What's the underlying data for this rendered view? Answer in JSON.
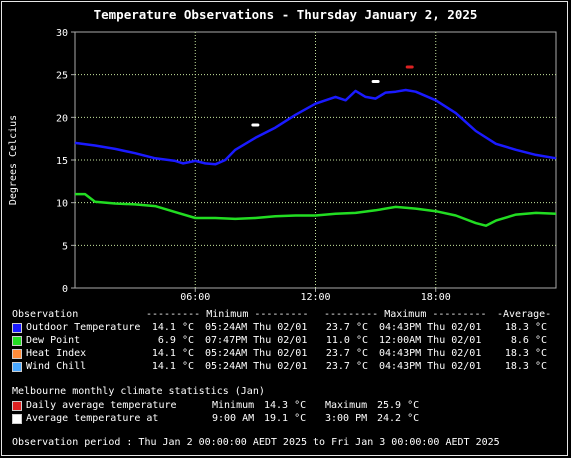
{
  "title": "Temperature Observations - Thursday January 2, 2025",
  "chart_data": {
    "type": "line",
    "ylabel": "Degrees Celcius",
    "ylim": [
      0,
      30
    ],
    "yticks": [
      "0",
      "5",
      "10",
      "15",
      "20",
      "25",
      "30"
    ],
    "xlim": [
      0,
      24
    ],
    "xticks": [
      {
        "x": 6,
        "label": "06:00"
      },
      {
        "x": 12,
        "label": "12:00"
      },
      {
        "x": 18,
        "label": "18:00"
      }
    ],
    "grid": true,
    "series": [
      {
        "name": "Outdoor Temperature",
        "color": "#1a1aff",
        "points": [
          [
            0,
            17.0
          ],
          [
            1,
            16.7
          ],
          [
            2,
            16.3
          ],
          [
            3,
            15.8
          ],
          [
            4,
            15.2
          ],
          [
            5,
            14.9
          ],
          [
            5.4,
            14.6
          ],
          [
            6,
            14.9
          ],
          [
            6.5,
            14.6
          ],
          [
            7,
            14.5
          ],
          [
            7.5,
            15.0
          ],
          [
            8,
            16.2
          ],
          [
            9,
            17.6
          ],
          [
            10,
            18.8
          ],
          [
            11,
            20.3
          ],
          [
            12,
            21.6
          ],
          [
            13,
            22.4
          ],
          [
            13.5,
            22.0
          ],
          [
            14,
            23.1
          ],
          [
            14.5,
            22.4
          ],
          [
            15,
            22.2
          ],
          [
            15.5,
            22.9
          ],
          [
            16,
            23.0
          ],
          [
            16.5,
            23.2
          ],
          [
            17,
            23.0
          ],
          [
            18,
            22.0
          ],
          [
            19,
            20.5
          ],
          [
            20,
            18.4
          ],
          [
            21,
            16.9
          ],
          [
            22,
            16.2
          ],
          [
            23,
            15.6
          ],
          [
            24,
            15.2
          ]
        ]
      },
      {
        "name": "Dew Point",
        "color": "#22dd22",
        "points": [
          [
            0,
            11.0
          ],
          [
            0.5,
            11.0
          ],
          [
            1,
            10.1
          ],
          [
            2,
            9.9
          ],
          [
            3,
            9.8
          ],
          [
            4,
            9.6
          ],
          [
            5,
            8.9
          ],
          [
            6,
            8.2
          ],
          [
            7,
            8.2
          ],
          [
            8,
            8.1
          ],
          [
            9,
            8.2
          ],
          [
            10,
            8.4
          ],
          [
            11,
            8.5
          ],
          [
            12,
            8.5
          ],
          [
            13,
            8.7
          ],
          [
            14,
            8.8
          ],
          [
            15,
            9.1
          ],
          [
            16,
            9.5
          ],
          [
            17,
            9.3
          ],
          [
            18,
            9.0
          ],
          [
            19,
            8.5
          ],
          [
            20,
            7.6
          ],
          [
            20.5,
            7.3
          ],
          [
            21,
            7.9
          ],
          [
            22,
            8.6
          ],
          [
            23,
            8.8
          ],
          [
            24,
            8.7
          ]
        ]
      }
    ],
    "markers": [
      {
        "name": "Daily average temperature",
        "x": 16.7,
        "y": 25.9,
        "color": "#dd2222"
      },
      {
        "name": "Average temperature at 9:00 AM",
        "x": 9,
        "y": 19.1,
        "color": "#ffffff"
      },
      {
        "name": "Average temperature at 3:00 PM",
        "x": 15,
        "y": 24.2,
        "color": "#ffffff"
      }
    ]
  },
  "table": {
    "header": {
      "observation": "Observation",
      "minimum": "--------- Minimum ---------",
      "maximum": "--------- Maximum ---------",
      "average": "-Average-"
    },
    "rows": [
      {
        "label": "Outdoor Temperature",
        "color": "#1a1aff",
        "min": "14.1 °C",
        "min_time": "05:24AM Thu 02/01",
        "max": "23.7 °C",
        "max_time": "04:43PM Thu 02/01",
        "avg": "18.3 °C"
      },
      {
        "label": "Dew Point",
        "color": "#22dd22",
        "min": "6.9 °C",
        "min_time": "07:47PM Thu 02/01",
        "max": "11.0 °C",
        "max_time": "12:00AM Thu 02/01",
        "avg": "8.6 °C"
      },
      {
        "label": "Heat Index",
        "color": "#ff8c3a",
        "min": "14.1 °C",
        "min_time": "05:24AM Thu 02/01",
        "max": "23.7 °C",
        "max_time": "04:43PM Thu 02/01",
        "avg": "18.3 °C"
      },
      {
        "label": "Wind Chill",
        "color": "#4aa8ff",
        "min": "14.1 °C",
        "min_time": "05:24AM Thu 02/01",
        "max": "23.7 °C",
        "max_time": "04:43PM Thu 02/01",
        "avg": "18.3 °C"
      }
    ]
  },
  "climate": {
    "heading": "Melbourne monthly climate statistics (Jan)",
    "rows": [
      {
        "label": "Daily average temperature",
        "color": "#dd2222",
        "c1": "Minimum",
        "v1": "14.3 °C",
        "c2": "Maximum",
        "v2": "25.9 °C"
      },
      {
        "label": "Average temperature at",
        "color": "#ffffff",
        "c1": "9:00 AM",
        "v1": "19.1 °C",
        "c2": "3:00 PM",
        "v2": "24.2 °C"
      }
    ]
  },
  "footer": "Observation period : Thu Jan 2 00:00:00 AEDT 2025 to Fri Jan 3 00:00:00 AEDT 2025"
}
